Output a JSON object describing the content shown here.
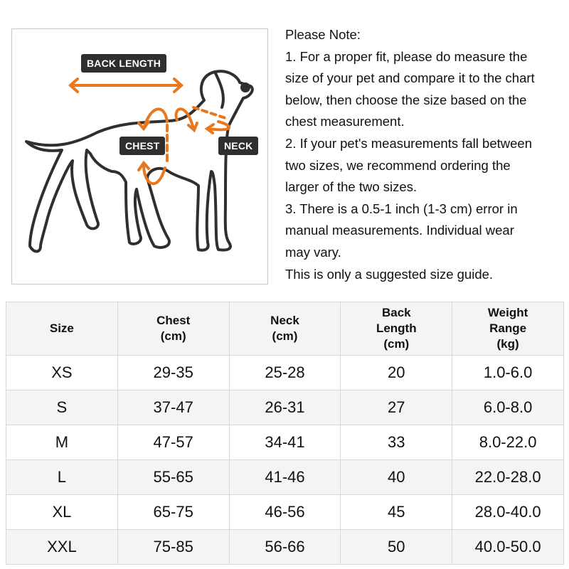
{
  "diagram": {
    "labels": {
      "back_length": "BACK LENGTH",
      "chest": "CHEST",
      "neck": "NECK"
    },
    "accent_color": "#e8771e",
    "outline_color": "#2f2f2f"
  },
  "notes": {
    "lines": [
      "Please Note:",
      "1. For a proper fit, please do measure the",
      "size of your pet and compare it to the chart",
      "below, then choose the size based on the",
      "chest measurement.",
      "2. If your pet's measurements fall between",
      "two sizes, we recommend ordering the",
      "larger of the two sizes.",
      "3. There is a 0.5-1 inch (1-3 cm) error in",
      "manual measurements. Individual wear",
      "may vary.",
      "This is only a suggested size guide."
    ]
  },
  "table": {
    "headers": [
      [
        "Size"
      ],
      [
        "Chest",
        "(cm)"
      ],
      [
        "Neck",
        "(cm)"
      ],
      [
        "Back",
        "Length",
        "(cm)"
      ],
      [
        "Weight",
        "Range",
        "(kg)"
      ]
    ],
    "rows": [
      [
        "XS",
        "29-35",
        "25-28",
        "20",
        "1.0-6.0"
      ],
      [
        "S",
        "37-47",
        "26-31",
        "27",
        "6.0-8.0"
      ],
      [
        "M",
        "47-57",
        "34-41",
        "33",
        "8.0-22.0"
      ],
      [
        "L",
        "55-65",
        "41-46",
        "40",
        "22.0-28.0"
      ],
      [
        "XL",
        "65-75",
        "46-56",
        "45",
        "28.0-40.0"
      ],
      [
        "XXL",
        "75-85",
        "56-66",
        "50",
        "40.0-50.0"
      ]
    ]
  }
}
